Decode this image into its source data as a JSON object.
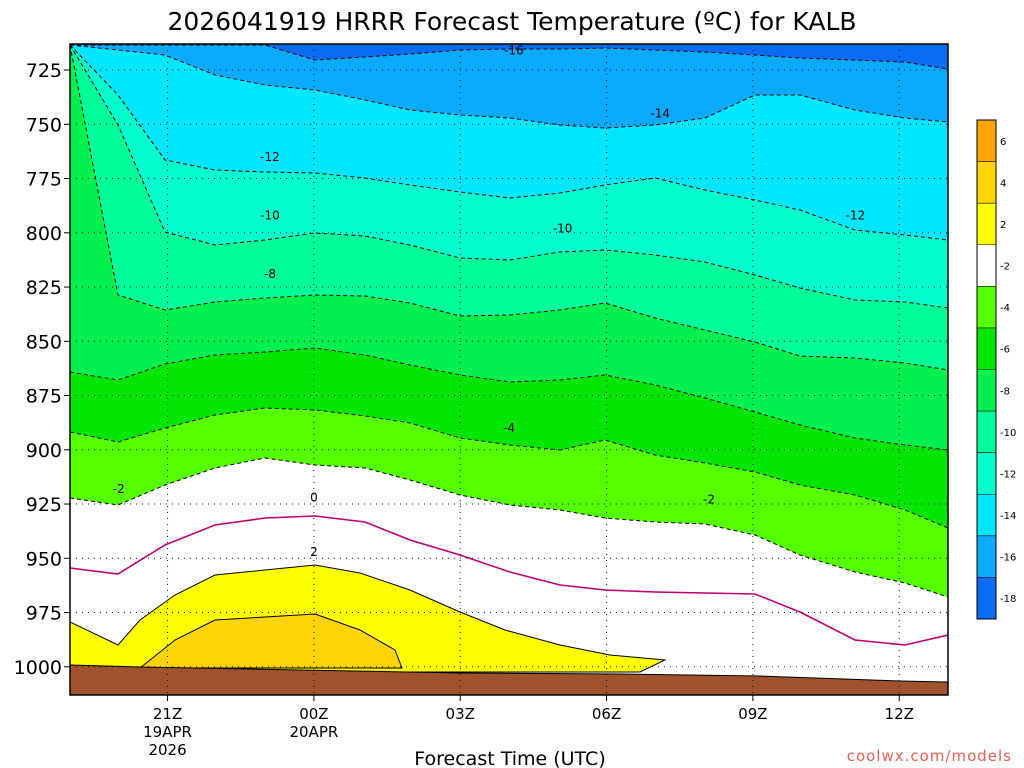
{
  "chart_data": {
    "type": "contour",
    "title": "2026041919 HRRR Forecast Temperature (ºC) for KALB",
    "xlabel": "Forecast Time (UTC)",
    "ylabel": "",
    "credit": "coolwx.com/models",
    "y_axis": {
      "ticks": [
        725,
        750,
        775,
        800,
        825,
        850,
        875,
        900,
        925,
        950,
        975,
        1000
      ],
      "tick_labels": [
        "725",
        "750",
        "775",
        "800",
        "825",
        "850",
        "875",
        "900",
        "925",
        "950",
        "975",
        "1000"
      ],
      "range": [
        713,
        1013
      ],
      "inverted": true
    },
    "x_axis": {
      "ticks": [
        21,
        24,
        27,
        30,
        33,
        36
      ],
      "tick_labels": [
        {
          "line1": "21Z",
          "line2": "19APR",
          "line3": "2026"
        },
        {
          "line1": "00Z",
          "line2": "20APR",
          "line3": ""
        },
        {
          "line1": "03Z",
          "line2": "",
          "line3": ""
        },
        {
          "line1": "06Z",
          "line2": "",
          "line3": ""
        },
        {
          "line1": "09Z",
          "line2": "",
          "line3": ""
        },
        {
          "line1": "12Z",
          "line2": "",
          "line3": ""
        }
      ],
      "range": [
        19,
        37
      ]
    },
    "grid": true,
    "colorbar": {
      "position": "right",
      "tick_labels": [
        "6",
        "4",
        "2",
        "-2",
        "-4",
        "-6",
        "-8",
        "-10",
        "-12",
        "-14",
        "-16",
        "-18"
      ]
    },
    "contour_labels": [
      {
        "text": "-16",
        "x": 28.1,
        "p": 716
      },
      {
        "text": "-14",
        "x": 31.1,
        "p": 745
      },
      {
        "text": "-12",
        "x": 23.1,
        "p": 765
      },
      {
        "text": "-12",
        "x": 35.1,
        "p": 792
      },
      {
        "text": "-10",
        "x": 23.1,
        "p": 792
      },
      {
        "text": "-10",
        "x": 29.1,
        "p": 798
      },
      {
        "text": "-8",
        "x": 23.1,
        "p": 819
      },
      {
        "text": "-4",
        "x": 28.0,
        "p": 890
      },
      {
        "text": "-2",
        "x": 20.0,
        "p": 918
      },
      {
        "text": "-2",
        "x": 32.1,
        "p": 923
      },
      {
        "text": "0",
        "x": 24.0,
        "p": 922
      },
      {
        "text": "2",
        "x": 24.0,
        "p": 947
      }
    ],
    "colors": {
      "below_-16": "#0a6cf5",
      "-16_-14": "#0aaaff",
      "-14_-12": "#00e6ff",
      "-12_-10": "#00ffcc",
      "-10_-8": "#00ff99",
      "-8_-6": "#00f04e",
      "-6_-4": "#00e600",
      "-4_-2": "#55ff00",
      "-2_2": "#ffffff",
      "2_4": "#ffff00",
      "4_6": "#ffd400",
      "above_6": "#ffa500",
      "ground": "#a0522d",
      "freezing_line": "#c0006c"
    }
  }
}
